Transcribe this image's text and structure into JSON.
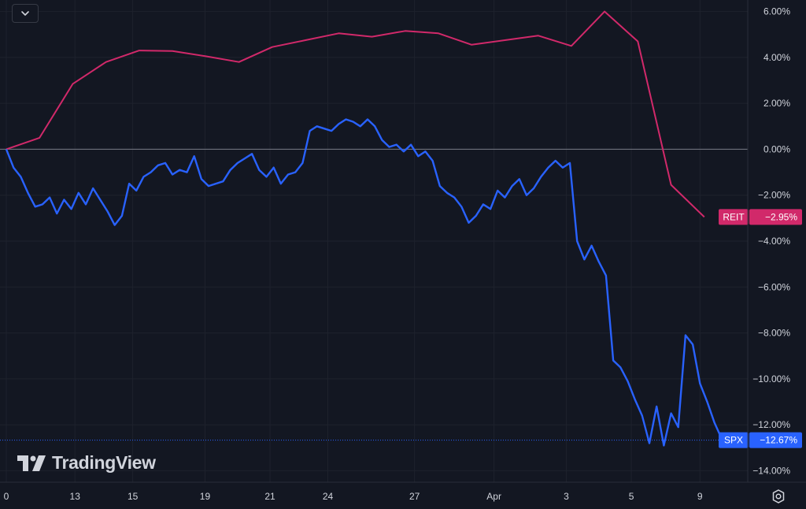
{
  "brand": {
    "logo_text": "TradingView"
  },
  "colors": {
    "background": "#131722",
    "grid": "#1e222d",
    "zero_line": "#787b86",
    "text": "#d1d4dc",
    "reit": "#d1296a",
    "spx": "#2962ff"
  },
  "icons": {
    "collapse": "chevron-down-icon",
    "settings": "settings-gear-icon",
    "logo": "tradingview-logo-icon"
  },
  "chart_data": {
    "type": "line",
    "title": "",
    "x_tick_labels": [
      "0",
      "13",
      "15",
      "19",
      "21",
      "24",
      "27",
      "Apr",
      "3",
      "5",
      "9"
    ],
    "y_tick_labels": [
      "6.00%",
      "4.00%",
      "2.00%",
      "0.00%",
      "−2.00%",
      "−4.00%",
      "−6.00%",
      "−8.00%",
      "−10.00%",
      "−12.00%",
      "−14.00%"
    ],
    "ylim": [
      -14.5,
      6.5
    ],
    "y_ticks": [
      6,
      4,
      2,
      0,
      -2,
      -4,
      -6,
      -8,
      -10,
      -12,
      -14
    ],
    "x_tick_positions": [
      0,
      9.5,
      17.5,
      27.5,
      36.5,
      44.5,
      56.5,
      67.5,
      77.5,
      86.5,
      96
    ],
    "grid": true,
    "series": [
      {
        "name": "REIT",
        "last_label": "−2.95%",
        "x": [
          0,
          4.6,
          9.2,
          13.8,
          18.4,
          23,
          27.6,
          32.2,
          36.8,
          41.4,
          46,
          50.6,
          55.2,
          59.8,
          64.4,
          69,
          73.6,
          78.2,
          82.8,
          87.4,
          92,
          96.6
        ],
        "values": [
          0.0,
          0.5,
          2.85,
          3.8,
          4.3,
          4.28,
          4.05,
          3.8,
          4.45,
          4.75,
          5.05,
          4.9,
          5.15,
          5.05,
          4.55,
          4.75,
          4.95,
          4.5,
          6.0,
          4.7,
          -1.55,
          -2.95
        ]
      },
      {
        "name": "SPX",
        "last_label": "−12.67%",
        "x": [
          0,
          1,
          2,
          3,
          4,
          5,
          6,
          7,
          8,
          9,
          10,
          11,
          12,
          13,
          14,
          15,
          16,
          17,
          18,
          19,
          20,
          21,
          22,
          23,
          24,
          25,
          26,
          27,
          28,
          29,
          30,
          31,
          32,
          33,
          34,
          35,
          36,
          37,
          38,
          39,
          40,
          41,
          42,
          43,
          44,
          45,
          46,
          47,
          48,
          49,
          50,
          51,
          52,
          53,
          54,
          55,
          56,
          57,
          58,
          59,
          60,
          61,
          62,
          63,
          64,
          65,
          66,
          67,
          68,
          69,
          70,
          71,
          72,
          73,
          74,
          75,
          76,
          77,
          78,
          79,
          80,
          81,
          82,
          83,
          84,
          85,
          86,
          87,
          88,
          89,
          90,
          91,
          92,
          93,
          94,
          95,
          96,
          97,
          98,
          99,
          100
        ],
        "values": [
          0.0,
          -0.8,
          -1.2,
          -1.9,
          -2.5,
          -2.4,
          -2.1,
          -2.8,
          -2.2,
          -2.6,
          -1.9,
          -2.4,
          -1.7,
          -2.2,
          -2.7,
          -3.3,
          -2.9,
          -1.5,
          -1.8,
          -1.2,
          -1.0,
          -0.7,
          -0.6,
          -1.1,
          -0.9,
          -1.0,
          -0.3,
          -1.3,
          -1.6,
          -1.5,
          -1.4,
          -0.9,
          -0.6,
          -0.4,
          -0.2,
          -0.9,
          -1.2,
          -0.8,
          -1.5,
          -1.1,
          -1.0,
          -0.6,
          0.8,
          1.0,
          0.9,
          0.8,
          1.1,
          1.3,
          1.2,
          1.0,
          1.3,
          1.0,
          0.4,
          0.1,
          0.2,
          -0.1,
          0.2,
          -0.3,
          -0.1,
          -0.5,
          -1.6,
          -1.9,
          -2.1,
          -2.5,
          -3.2,
          -2.9,
          -2.4,
          -2.6,
          -1.8,
          -2.1,
          -1.6,
          -1.3,
          -2.0,
          -1.7,
          -1.2,
          -0.8,
          -0.5,
          -0.8,
          -0.6,
          -4.0,
          -4.8,
          -4.2,
          -4.9,
          -5.5,
          -9.2,
          -9.5,
          -10.1,
          -10.9,
          -11.6,
          -12.8,
          -11.2,
          -12.9,
          -11.5,
          -12.1,
          -8.1,
          -8.5,
          -10.2,
          -11.0,
          -11.9,
          -12.6,
          -12.67
        ]
      }
    ]
  }
}
